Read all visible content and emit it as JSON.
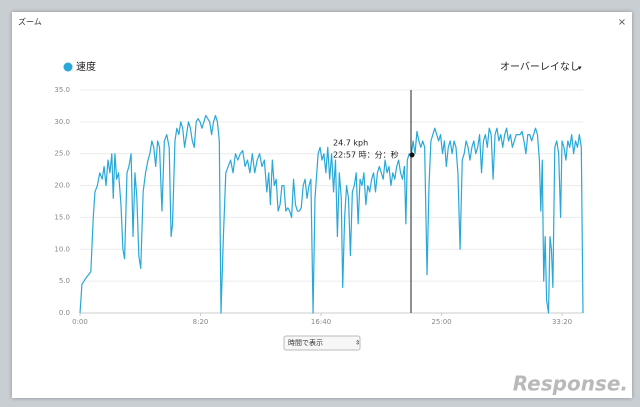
{
  "dialog": {
    "title": "ズーム",
    "close": "×"
  },
  "overlay_select": "オーバーレイなし",
  "x_mode_select": "時間で表示",
  "tooltip": {
    "value": "24.7 kph",
    "time": "22:57 時：分：秒"
  },
  "watermark": "Response.",
  "chart_data": {
    "type": "line",
    "x": [
      0,
      8,
      25,
      45,
      55,
      62,
      72,
      82,
      92,
      100,
      108,
      116,
      124,
      132,
      138,
      145,
      152,
      160,
      170,
      178,
      185,
      195,
      203,
      212,
      220,
      228,
      236,
      244,
      252,
      262,
      272,
      282,
      290,
      298,
      306,
      314,
      322,
      330,
      340,
      350,
      360,
      370,
      378,
      384,
      394,
      402,
      410,
      418,
      426,
      434,
      442,
      450,
      458,
      466,
      474,
      482,
      490,
      498,
      506,
      514,
      522,
      530,
      538,
      546,
      554,
      562,
      570,
      578,
      585,
      595,
      605,
      615,
      625,
      635,
      645,
      655,
      665,
      675,
      685,
      695,
      705,
      715,
      725,
      735,
      745,
      755,
      765,
      775,
      783,
      790,
      798,
      806,
      814,
      822,
      830,
      838,
      846,
      854,
      862,
      870,
      878,
      886,
      894,
      902,
      910,
      918,
      926,
      934,
      942,
      950,
      958,
      967,
      975,
      988,
      996,
      1004,
      1012,
      1020,
      1028,
      1036,
      1044,
      1052,
      1060,
      1068,
      1076,
      1084,
      1090,
      1098,
      1106,
      1114,
      1122,
      1130,
      1138,
      1146,
      1154,
      1162,
      1170,
      1178,
      1186,
      1194,
      1202,
      1210,
      1218,
      1226,
      1234,
      1242,
      1250,
      1258,
      1266,
      1274,
      1282,
      1290,
      1298,
      1306,
      1314,
      1322,
      1330,
      1338,
      1346,
      1352,
      1358,
      1366,
      1374,
      1382,
      1390,
      1398,
      1406,
      1414,
      1422,
      1430,
      1440,
      1448,
      1456,
      1464,
      1472,
      1480,
      1488,
      1496,
      1504,
      1512,
      1520,
      1528,
      1536,
      1544,
      1552,
      1560,
      1568,
      1577,
      1586,
      1594,
      1602,
      1610,
      1618,
      1626,
      1634,
      1642,
      1650,
      1658,
      1666,
      1674,
      1682,
      1690,
      1698,
      1706,
      1714,
      1722,
      1730,
      1738,
      1746,
      1754,
      1762,
      1770,
      1778,
      1786,
      1794,
      1802,
      1810,
      1818,
      1826,
      1834,
      1842,
      1850,
      1858,
      1866,
      1874,
      1882,
      1890,
      1898,
      1906,
      1912,
      1918,
      1924,
      1930,
      1936,
      1944,
      1950,
      1956,
      1962,
      1970,
      1978,
      1986,
      1994,
      2000,
      2008,
      2016,
      2024,
      2032,
      2040,
      2048,
      2056,
      2064,
      2072,
      2080,
      2087
    ],
    "series": [
      {
        "name": "速度",
        "color": "#29a8d8",
        "values": [
          0,
          4.5,
          5.5,
          6.5,
          15,
          19,
          20,
          22,
          21,
          23,
          20,
          24,
          22,
          25,
          18,
          25,
          21,
          22,
          17,
          10,
          8.5,
          22,
          23,
          25,
          12,
          22,
          18,
          9,
          7,
          19,
          22,
          24,
          25,
          27,
          26,
          23,
          27,
          26,
          16,
          27,
          28,
          26,
          12,
          14,
          27,
          29,
          28,
          30,
          29,
          26,
          28,
          30,
          29,
          27,
          26,
          30,
          30.5,
          30,
          29,
          30,
          31,
          30.5,
          30,
          28,
          30,
          31,
          30,
          27,
          0,
          12,
          22,
          23,
          24,
          22,
          25,
          24,
          25,
          25.5,
          23,
          24,
          22,
          25,
          22,
          24,
          25,
          23,
          24,
          19,
          22,
          17,
          24,
          20,
          21,
          16,
          17,
          20,
          20,
          16,
          16.5,
          16,
          15,
          21,
          17,
          16,
          16,
          16.5,
          20,
          21,
          18,
          20,
          21,
          0,
          18,
          25,
          26,
          24,
          25,
          22,
          26,
          21,
          25,
          19,
          24,
          12,
          22,
          18,
          4,
          15,
          20,
          18,
          9,
          19,
          20,
          22,
          14,
          21,
          20,
          22,
          17,
          20,
          19,
          21,
          22,
          19,
          22,
          23,
          22,
          21,
          24,
          22,
          23,
          20,
          22,
          21,
          23,
          24,
          22,
          21,
          23,
          14,
          24,
          25,
          24.7,
          27,
          25,
          28.5,
          27,
          26,
          27,
          26,
          6,
          20,
          27,
          28,
          29,
          28,
          27,
          28,
          25,
          27,
          23,
          26,
          27,
          25,
          27,
          26,
          22,
          10,
          24,
          25,
          27,
          26,
          24,
          26,
          27,
          25,
          26,
          28,
          22,
          27,
          28,
          26,
          29,
          28,
          21,
          28,
          29,
          27,
          28,
          26,
          28,
          29,
          27,
          28,
          26,
          27,
          28,
          28,
          28,
          28.5,
          27,
          25,
          28,
          28,
          27,
          28,
          29,
          28,
          24,
          16,
          24,
          5,
          12,
          2,
          0,
          12,
          10,
          4,
          26,
          27,
          25,
          15,
          27,
          26,
          24,
          27,
          26,
          28,
          25,
          27,
          26,
          28,
          26,
          0
        ]
      }
    ],
    "xlim": [
      0,
      2087
    ],
    "xticks": [
      {
        "value": 0,
        "label": "0:00"
      },
      {
        "value": 500,
        "label": "8:20"
      },
      {
        "value": 1000,
        "label": "16:40"
      },
      {
        "value": 1500,
        "label": "25:00"
      },
      {
        "value": 2000,
        "label": "33:20"
      }
    ],
    "ylim": [
      0,
      35
    ],
    "yticks": [
      {
        "value": 0,
        "label": "0.0"
      },
      {
        "value": 5,
        "label": "5.0"
      },
      {
        "value": 10,
        "label": "10.0"
      },
      {
        "value": 15,
        "label": "15.0"
      },
      {
        "value": 20,
        "label": "20.0"
      },
      {
        "value": 25,
        "label": "25.0"
      },
      {
        "value": 30,
        "label": "30.0"
      },
      {
        "value": 35,
        "label": "35.0"
      }
    ],
    "grid": true
  }
}
